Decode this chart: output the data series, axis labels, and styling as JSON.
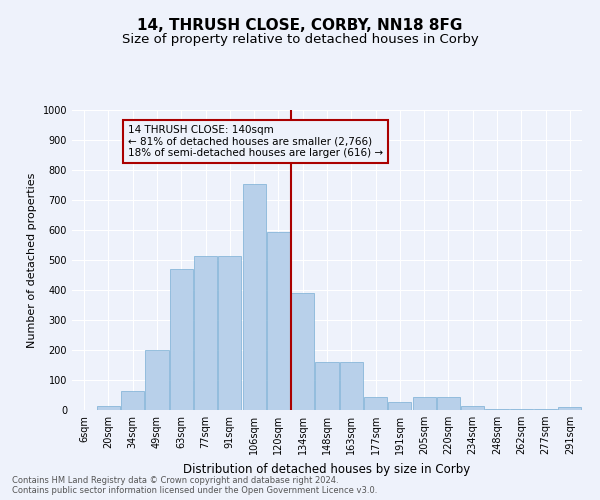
{
  "title": "14, THRUSH CLOSE, CORBY, NN18 8FG",
  "subtitle": "Size of property relative to detached houses in Corby",
  "xlabel": "Distribution of detached houses by size in Corby",
  "ylabel": "Number of detached properties",
  "categories": [
    "6sqm",
    "20sqm",
    "34sqm",
    "49sqm",
    "63sqm",
    "77sqm",
    "91sqm",
    "106sqm",
    "120sqm",
    "134sqm",
    "148sqm",
    "163sqm",
    "177sqm",
    "191sqm",
    "205sqm",
    "220sqm",
    "234sqm",
    "248sqm",
    "262sqm",
    "277sqm",
    "291sqm"
  ],
  "values": [
    0,
    13,
    65,
    200,
    470,
    515,
    515,
    755,
    595,
    390,
    160,
    160,
    42,
    27,
    45,
    45,
    12,
    3,
    3,
    3,
    10
  ],
  "bar_color": "#b8d0ea",
  "bar_edge_color": "#7aafd4",
  "vline_x": 8.5,
  "vline_color": "#aa0000",
  "annotation_text": "14 THRUSH CLOSE: 140sqm\n← 81% of detached houses are smaller (2,766)\n18% of semi-detached houses are larger (616) →",
  "annotation_box_color": "#aa0000",
  "ylim": [
    0,
    1000
  ],
  "yticks": [
    0,
    100,
    200,
    300,
    400,
    500,
    600,
    700,
    800,
    900,
    1000
  ],
  "background_color": "#eef2fb",
  "grid_color": "#ffffff",
  "footer": "Contains HM Land Registry data © Crown copyright and database right 2024.\nContains public sector information licensed under the Open Government Licence v3.0.",
  "title_fontsize": 11,
  "subtitle_fontsize": 9.5,
  "xlabel_fontsize": 8.5,
  "ylabel_fontsize": 8,
  "tick_fontsize": 7,
  "annotation_fontsize": 7.5,
  "footer_fontsize": 6
}
